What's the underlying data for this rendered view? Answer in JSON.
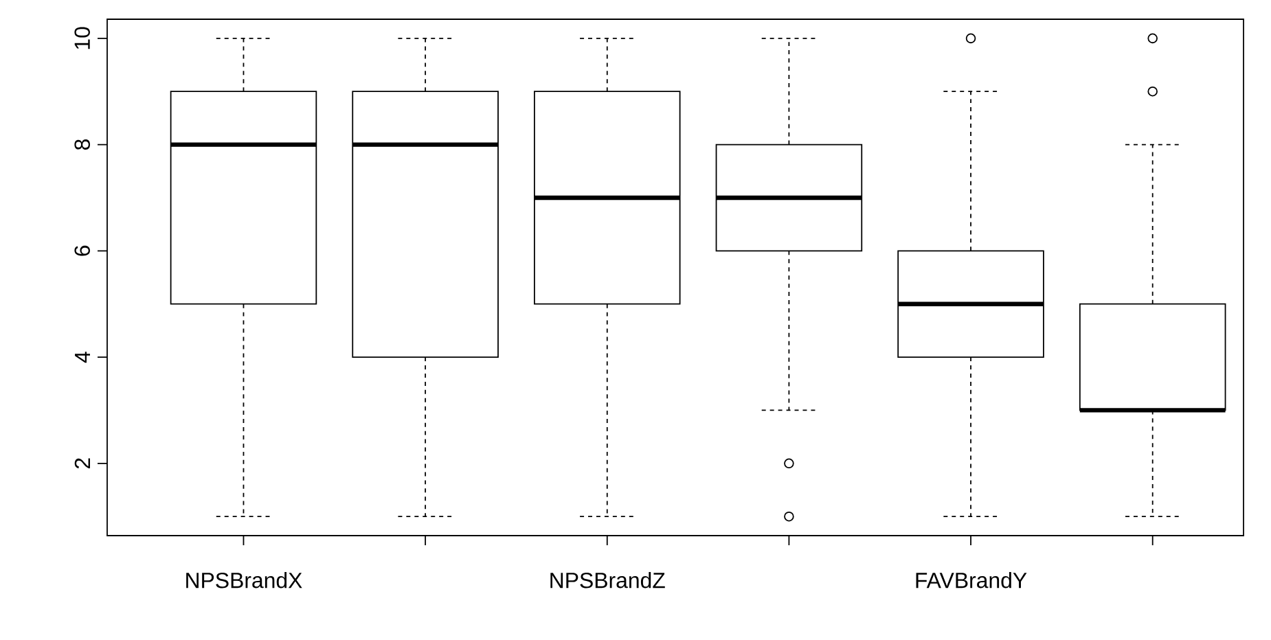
{
  "chart_data": {
    "type": "box",
    "categories": [
      "NPSBrandX",
      null,
      "NPSBrandZ",
      null,
      "FAVBrandY",
      null
    ],
    "boxes": [
      {
        "low": 1,
        "q1": 5,
        "median": 8,
        "q3": 9,
        "high": 10
      },
      {
        "low": 1,
        "q1": 4,
        "median": 8,
        "q3": 9,
        "high": 10
      },
      {
        "low": 1,
        "q1": 5,
        "median": 7,
        "q3": 9,
        "high": 10
      },
      {
        "low": 3,
        "q1": 6,
        "median": 7,
        "q3": 8,
        "high": 10,
        "outliers": [
          2,
          1
        ]
      },
      {
        "low": 1,
        "q1": 4,
        "median": 5,
        "q3": 6,
        "high": 9,
        "outliers": [
          10
        ]
      },
      {
        "low": 1,
        "q1": 3,
        "median": 3,
        "q3": 5,
        "high": 8,
        "outliers": [
          9,
          10
        ]
      }
    ],
    "ylim": [
      0.64,
      10.36
    ],
    "yticks": [
      2,
      4,
      6,
      8,
      10
    ]
  }
}
